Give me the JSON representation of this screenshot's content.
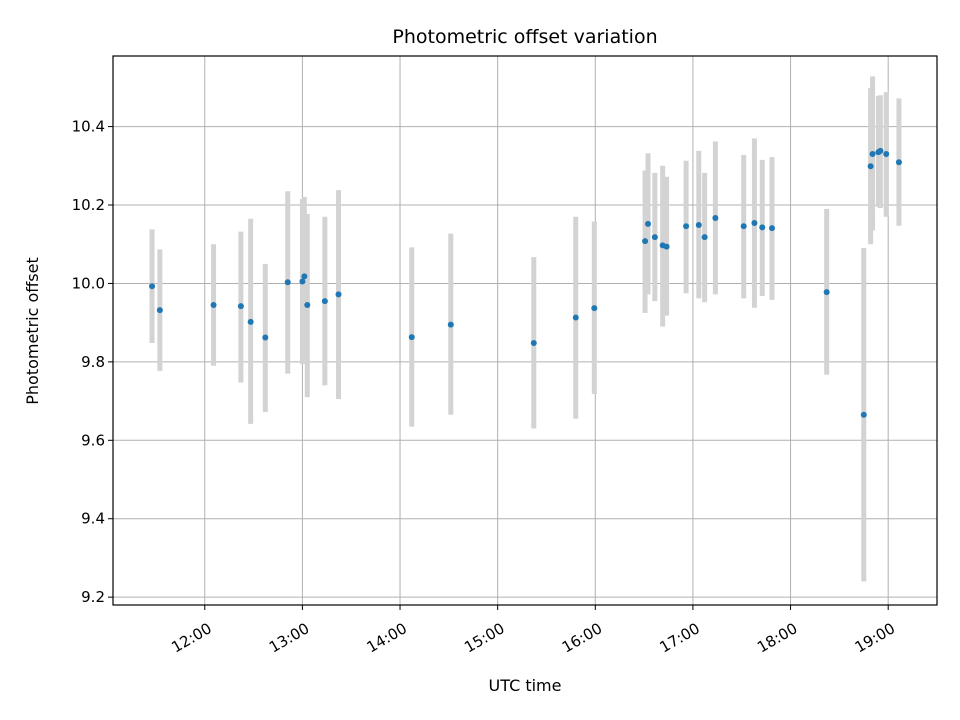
{
  "chart_data": {
    "type": "scatter",
    "title": "Photometric offset variation",
    "xlabel": "UTC time",
    "ylabel": "Photometric offset",
    "xlim_hours": [
      11.06,
      19.5
    ],
    "ylim": [
      9.18,
      10.58
    ],
    "grid": true,
    "x_ticks": [
      {
        "h": 12,
        "label": "12:00"
      },
      {
        "h": 13,
        "label": "13:00"
      },
      {
        "h": 14,
        "label": "14:00"
      },
      {
        "h": 15,
        "label": "15:00"
      },
      {
        "h": 16,
        "label": "16:00"
      },
      {
        "h": 17,
        "label": "17:00"
      },
      {
        "h": 18,
        "label": "18:00"
      },
      {
        "h": 19,
        "label": "19:00"
      }
    ],
    "y_ticks": [
      {
        "v": 9.2,
        "label": "9.2"
      },
      {
        "v": 9.4,
        "label": "9.4"
      },
      {
        "v": 9.6,
        "label": "9.6"
      },
      {
        "v": 9.8,
        "label": "9.8"
      },
      {
        "v": 10.0,
        "label": "10.0"
      },
      {
        "v": 10.2,
        "label": "10.2"
      },
      {
        "v": 10.4,
        "label": "10.4"
      }
    ],
    "marker_color": "#1f77b4",
    "errorbar_color": "#d3d3d3",
    "points": [
      {
        "t": 11.46,
        "y": 9.993,
        "lo": 9.848,
        "hi": 10.138
      },
      {
        "t": 11.54,
        "y": 9.932,
        "lo": 9.777,
        "hi": 10.087
      },
      {
        "t": 12.09,
        "y": 9.945,
        "lo": 9.79,
        "hi": 10.1
      },
      {
        "t": 12.37,
        "y": 9.942,
        "lo": 9.747,
        "hi": 10.132
      },
      {
        "t": 12.47,
        "y": 9.902,
        "lo": 9.642,
        "hi": 10.165
      },
      {
        "t": 12.62,
        "y": 9.862,
        "lo": 9.672,
        "hi": 10.05
      },
      {
        "t": 12.85,
        "y": 10.003,
        "lo": 9.77,
        "hi": 10.235
      },
      {
        "t": 13.0,
        "y": 10.005,
        "lo": 9.795,
        "hi": 10.215
      },
      {
        "t": 13.02,
        "y": 10.018,
        "lo": 9.795,
        "hi": 10.22
      },
      {
        "t": 13.05,
        "y": 9.945,
        "lo": 9.71,
        "hi": 10.177
      },
      {
        "t": 13.23,
        "y": 9.955,
        "lo": 9.74,
        "hi": 10.17
      },
      {
        "t": 13.37,
        "y": 9.972,
        "lo": 9.705,
        "hi": 10.238
      },
      {
        "t": 14.12,
        "y": 9.863,
        "lo": 9.635,
        "hi": 10.092
      },
      {
        "t": 14.52,
        "y": 9.895,
        "lo": 9.665,
        "hi": 10.127
      },
      {
        "t": 15.37,
        "y": 9.848,
        "lo": 9.63,
        "hi": 10.067
      },
      {
        "t": 15.8,
        "y": 9.913,
        "lo": 9.655,
        "hi": 10.17
      },
      {
        "t": 15.99,
        "y": 9.937,
        "lo": 9.718,
        "hi": 10.158
      },
      {
        "t": 16.51,
        "y": 10.108,
        "lo": 9.925,
        "hi": 10.288
      },
      {
        "t": 16.54,
        "y": 10.152,
        "lo": 9.972,
        "hi": 10.332
      },
      {
        "t": 16.61,
        "y": 10.118,
        "lo": 9.955,
        "hi": 10.282
      },
      {
        "t": 16.69,
        "y": 10.097,
        "lo": 9.89,
        "hi": 10.3
      },
      {
        "t": 16.73,
        "y": 10.094,
        "lo": 9.918,
        "hi": 10.272
      },
      {
        "t": 16.93,
        "y": 10.146,
        "lo": 9.975,
        "hi": 10.313
      },
      {
        "t": 17.06,
        "y": 10.149,
        "lo": 9.962,
        "hi": 10.338
      },
      {
        "t": 17.12,
        "y": 10.118,
        "lo": 9.952,
        "hi": 10.282
      },
      {
        "t": 17.23,
        "y": 10.167,
        "lo": 9.972,
        "hi": 10.362
      },
      {
        "t": 17.52,
        "y": 10.146,
        "lo": 9.962,
        "hi": 10.328
      },
      {
        "t": 17.63,
        "y": 10.154,
        "lo": 9.938,
        "hi": 10.37
      },
      {
        "t": 17.71,
        "y": 10.143,
        "lo": 9.968,
        "hi": 10.315
      },
      {
        "t": 17.81,
        "y": 10.141,
        "lo": 9.958,
        "hi": 10.322
      },
      {
        "t": 18.37,
        "y": 9.978,
        "lo": 9.767,
        "hi": 10.19
      },
      {
        "t": 18.75,
        "y": 9.665,
        "lo": 9.24,
        "hi": 10.09
      },
      {
        "t": 18.82,
        "y": 10.299,
        "lo": 10.1,
        "hi": 10.498
      },
      {
        "t": 18.84,
        "y": 10.33,
        "lo": 10.135,
        "hi": 10.528
      },
      {
        "t": 18.9,
        "y": 10.335,
        "lo": 10.195,
        "hi": 10.478
      },
      {
        "t": 18.92,
        "y": 10.338,
        "lo": 10.192,
        "hi": 10.48
      },
      {
        "t": 18.98,
        "y": 10.33,
        "lo": 10.17,
        "hi": 10.488
      },
      {
        "t": 19.11,
        "y": 10.309,
        "lo": 10.147,
        "hi": 10.472
      }
    ]
  }
}
